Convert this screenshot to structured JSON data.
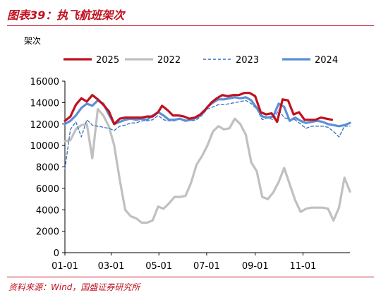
{
  "figure": {
    "title": "图表39：执飞航班架次",
    "source": "资料来源：Wind，国盛证券研究所"
  },
  "colors": {
    "title": "#c0101f",
    "rule": "#c0101f",
    "axis": "#000000"
  },
  "chart_data": {
    "type": "line",
    "ylabel": "架次",
    "xlabel": "",
    "ylim": [
      0,
      16000
    ],
    "yticks": [
      0,
      2000,
      4000,
      6000,
      8000,
      10000,
      12000,
      14000,
      16000
    ],
    "x_range": [
      "01-01",
      "12-31"
    ],
    "xticks": [
      "01-01",
      "03-01",
      "05-01",
      "07-01",
      "09-01",
      "11-01"
    ],
    "grid": false,
    "legend_position": "top",
    "series": [
      {
        "name": "2025",
        "color": "#c0101f",
        "style": "solid",
        "width": 3.2,
        "points": [
          [
            "01-01",
            12300
          ],
          [
            "01-08",
            12700
          ],
          [
            "01-15",
            13800
          ],
          [
            "01-22",
            14400
          ],
          [
            "01-29",
            14100
          ],
          [
            "02-05",
            14700
          ],
          [
            "02-12",
            14300
          ],
          [
            "02-19",
            13800
          ],
          [
            "02-26",
            13200
          ],
          [
            "03-05",
            12000
          ],
          [
            "03-12",
            12500
          ],
          [
            "03-19",
            12600
          ],
          [
            "03-26",
            12600
          ],
          [
            "04-02",
            12600
          ],
          [
            "04-09",
            12600
          ],
          [
            "04-16",
            12700
          ],
          [
            "04-23",
            12700
          ],
          [
            "04-30",
            13100
          ],
          [
            "05-05",
            13700
          ],
          [
            "05-12",
            13300
          ],
          [
            "05-19",
            12800
          ],
          [
            "05-26",
            12800
          ],
          [
            "06-02",
            12700
          ],
          [
            "06-09",
            12500
          ],
          [
            "06-16",
            12600
          ],
          [
            "06-23",
            12900
          ],
          [
            "06-30",
            13400
          ],
          [
            "07-07",
            14000
          ],
          [
            "07-14",
            14400
          ],
          [
            "07-21",
            14700
          ],
          [
            "07-28",
            14600
          ],
          [
            "08-04",
            14700
          ],
          [
            "08-11",
            14700
          ],
          [
            "08-18",
            14900
          ],
          [
            "08-25",
            14900
          ],
          [
            "09-01",
            14600
          ],
          [
            "09-08",
            13100
          ],
          [
            "09-15",
            12900
          ],
          [
            "09-22",
            13000
          ],
          [
            "09-29",
            12200
          ],
          [
            "10-06",
            14300
          ],
          [
            "10-13",
            14200
          ],
          [
            "10-20",
            12900
          ],
          [
            "10-27",
            13100
          ],
          [
            "11-03",
            12400
          ],
          [
            "11-10",
            12400
          ],
          [
            "11-17",
            12400
          ],
          [
            "11-24",
            12600
          ],
          [
            "12-01",
            12500
          ],
          [
            "12-08",
            12400
          ]
        ]
      },
      {
        "name": "2022",
        "color": "#c0c0c0",
        "style": "solid",
        "width": 3.2,
        "points": [
          [
            "01-01",
            10400
          ],
          [
            "01-08",
            10500
          ],
          [
            "01-15",
            11500
          ],
          [
            "01-22",
            11900
          ],
          [
            "01-29",
            12000
          ],
          [
            "02-05",
            8800
          ],
          [
            "02-12",
            13400
          ],
          [
            "02-19",
            12800
          ],
          [
            "02-26",
            11800
          ],
          [
            "03-05",
            10000
          ],
          [
            "03-12",
            6800
          ],
          [
            "03-19",
            4000
          ],
          [
            "03-26",
            3400
          ],
          [
            "04-02",
            3200
          ],
          [
            "04-09",
            2800
          ],
          [
            "04-16",
            2800
          ],
          [
            "04-23",
            3000
          ],
          [
            "04-30",
            4300
          ],
          [
            "05-07",
            4100
          ],
          [
            "05-14",
            4600
          ],
          [
            "05-21",
            5200
          ],
          [
            "05-28",
            5200
          ],
          [
            "06-04",
            5300
          ],
          [
            "06-11",
            6500
          ],
          [
            "06-18",
            8200
          ],
          [
            "06-25",
            9000
          ],
          [
            "07-02",
            10000
          ],
          [
            "07-09",
            11300
          ],
          [
            "07-16",
            11800
          ],
          [
            "07-23",
            11500
          ],
          [
            "07-30",
            11600
          ],
          [
            "08-06",
            12500
          ],
          [
            "08-13",
            12000
          ],
          [
            "08-20",
            11000
          ],
          [
            "08-27",
            8400
          ],
          [
            "09-03",
            7600
          ],
          [
            "09-10",
            5200
          ],
          [
            "09-17",
            5000
          ],
          [
            "09-24",
            5600
          ],
          [
            "10-01",
            6600
          ],
          [
            "10-08",
            7900
          ],
          [
            "10-15",
            6400
          ],
          [
            "10-22",
            4900
          ],
          [
            "10-29",
            3800
          ],
          [
            "11-05",
            4100
          ],
          [
            "11-12",
            4200
          ],
          [
            "11-19",
            4200
          ],
          [
            "11-26",
            4200
          ],
          [
            "12-03",
            4100
          ],
          [
            "12-10",
            3000
          ],
          [
            "12-17",
            4200
          ],
          [
            "12-24",
            7000
          ],
          [
            "12-31",
            5700
          ]
        ]
      },
      {
        "name": "2023",
        "color": "#3a6fbf",
        "style": "dashed",
        "width": 1.3,
        "points": [
          [
            "01-01",
            7800
          ],
          [
            "01-08",
            11500
          ],
          [
            "01-15",
            12200
          ],
          [
            "01-22",
            10800
          ],
          [
            "01-29",
            12400
          ],
          [
            "02-05",
            11900
          ],
          [
            "02-12",
            11800
          ],
          [
            "02-19",
            11700
          ],
          [
            "02-26",
            11600
          ],
          [
            "03-05",
            11400
          ],
          [
            "03-12",
            11800
          ],
          [
            "03-19",
            11900
          ],
          [
            "03-26",
            12100
          ],
          [
            "04-02",
            12100
          ],
          [
            "04-09",
            12300
          ],
          [
            "04-16",
            12300
          ],
          [
            "04-23",
            12400
          ],
          [
            "04-30",
            12800
          ],
          [
            "05-07",
            12400
          ],
          [
            "05-14",
            12300
          ],
          [
            "05-21",
            12300
          ],
          [
            "05-28",
            12500
          ],
          [
            "06-04",
            12400
          ],
          [
            "06-11",
            12300
          ],
          [
            "06-18",
            12400
          ],
          [
            "06-25",
            12800
          ],
          [
            "07-02",
            13400
          ],
          [
            "07-09",
            13600
          ],
          [
            "07-16",
            13800
          ],
          [
            "07-23",
            13800
          ],
          [
            "07-30",
            13900
          ],
          [
            "08-06",
            14000
          ],
          [
            "08-13",
            14100
          ],
          [
            "08-20",
            14200
          ],
          [
            "08-27",
            13900
          ],
          [
            "09-03",
            13400
          ],
          [
            "09-10",
            12400
          ],
          [
            "09-17",
            12600
          ],
          [
            "09-24",
            12400
          ],
          [
            "10-01",
            13300
          ],
          [
            "10-08",
            12600
          ],
          [
            "10-15",
            12400
          ],
          [
            "10-22",
            12400
          ],
          [
            "10-29",
            12000
          ],
          [
            "11-05",
            11600
          ],
          [
            "11-12",
            11800
          ],
          [
            "11-19",
            11800
          ],
          [
            "11-26",
            11800
          ],
          [
            "12-03",
            11700
          ],
          [
            "12-10",
            11300
          ],
          [
            "12-17",
            10800
          ],
          [
            "12-24",
            11800
          ],
          [
            "12-31",
            11800
          ]
        ]
      },
      {
        "name": "2024",
        "color": "#5b8fd6",
        "style": "solid",
        "width": 3.2,
        "points": [
          [
            "01-01",
            12000
          ],
          [
            "01-08",
            12300
          ],
          [
            "01-15",
            12800
          ],
          [
            "01-22",
            13500
          ],
          [
            "01-29",
            13900
          ],
          [
            "02-05",
            13700
          ],
          [
            "02-12",
            14200
          ],
          [
            "02-19",
            13900
          ],
          [
            "02-26",
            12900
          ],
          [
            "03-05",
            12000
          ],
          [
            "03-12",
            12200
          ],
          [
            "03-19",
            12400
          ],
          [
            "03-26",
            12500
          ],
          [
            "04-02",
            12400
          ],
          [
            "04-09",
            12500
          ],
          [
            "04-16",
            12400
          ],
          [
            "04-23",
            12800
          ],
          [
            "04-30",
            13100
          ],
          [
            "05-07",
            12800
          ],
          [
            "05-14",
            12400
          ],
          [
            "05-21",
            12400
          ],
          [
            "05-28",
            12500
          ],
          [
            "06-04",
            12300
          ],
          [
            "06-11",
            12400
          ],
          [
            "06-18",
            12600
          ],
          [
            "06-25",
            12900
          ],
          [
            "07-02",
            13600
          ],
          [
            "07-09",
            14000
          ],
          [
            "07-16",
            14300
          ],
          [
            "07-23",
            14300
          ],
          [
            "07-30",
            14400
          ],
          [
            "08-06",
            14500
          ],
          [
            "08-13",
            14400
          ],
          [
            "08-20",
            14500
          ],
          [
            "08-27",
            14200
          ],
          [
            "09-03",
            13500
          ],
          [
            "09-10",
            12700
          ],
          [
            "09-17",
            12600
          ],
          [
            "09-24",
            12700
          ],
          [
            "10-01",
            13900
          ],
          [
            "10-08",
            13600
          ],
          [
            "10-15",
            12300
          ],
          [
            "10-22",
            12600
          ],
          [
            "10-29",
            12300
          ],
          [
            "11-05",
            12100
          ],
          [
            "11-12",
            12200
          ],
          [
            "11-19",
            12300
          ],
          [
            "11-26",
            12200
          ],
          [
            "12-03",
            12000
          ],
          [
            "12-10",
            11900
          ],
          [
            "12-17",
            11800
          ],
          [
            "12-24",
            11900
          ],
          [
            "12-31",
            12100
          ]
        ]
      }
    ]
  }
}
